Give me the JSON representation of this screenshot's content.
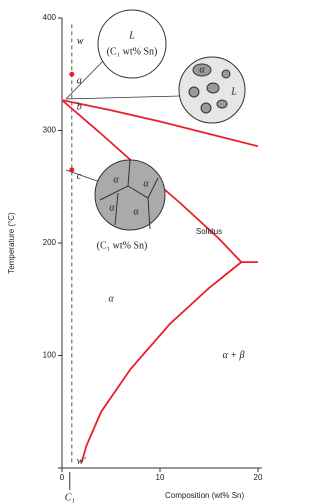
{
  "chart_data": {
    "type": "line",
    "y_label": "Temperature (°C)",
    "x_label": "Composition (wt% Sn)",
    "xlim": [
      0,
      20
    ],
    "ylim": [
      0,
      400
    ],
    "xticks": [
      0,
      10,
      20
    ],
    "yticks": [
      0,
      100,
      200,
      300,
      400
    ],
    "series": [
      {
        "color": "#e8202a",
        "x": [
          0,
          5,
          10,
          15,
          20
        ],
        "y": [
          327,
          318,
          308,
          297,
          286
        ]
      },
      {
        "color": "#e8202a",
        "x": [
          0,
          4,
          8,
          12,
          16,
          18.3
        ],
        "y": [
          327,
          297,
          266,
          236,
          204,
          183
        ]
      },
      {
        "color": "#e8202a",
        "x": [
          18.3,
          15,
          11,
          7,
          4,
          2.5,
          2
        ],
        "y": [
          183,
          160,
          128,
          88,
          50,
          20,
          5
        ]
      },
      {
        "color": "#e8202a",
        "x": [
          18.3,
          20
        ],
        "y": [
          183,
          183
        ]
      }
    ],
    "composition": {
      "value": 1,
      "label": "C₁",
      "ylim": [
        5,
        395
      ]
    },
    "points": [
      {
        "label": "w",
        "x": 1,
        "y": 385,
        "dot": false
      },
      {
        "label": "a",
        "x": 1,
        "y": 350,
        "dot": true
      },
      {
        "label": "b",
        "x": 1,
        "y": 327,
        "dot": false
      },
      {
        "label": "c",
        "x": 1,
        "y": 265,
        "dot": true
      },
      {
        "label": "w′",
        "x": 1,
        "y": 12,
        "dot": false
      }
    ],
    "regions": [
      {
        "text": "α",
        "x": 5,
        "y": 150
      },
      {
        "text": "α + β",
        "x": 17.5,
        "y": 100
      },
      {
        "text": "Solidus",
        "x": 15,
        "y": 210
      }
    ],
    "microstructures": {
      "liquid": [
        "L",
        "(C₁ wt% Sn)"
      ],
      "two_phase": [
        "α",
        "L"
      ],
      "solid": [
        "α",
        "α",
        "α",
        "α",
        "(C₁ wt% Sn)"
      ]
    }
  }
}
